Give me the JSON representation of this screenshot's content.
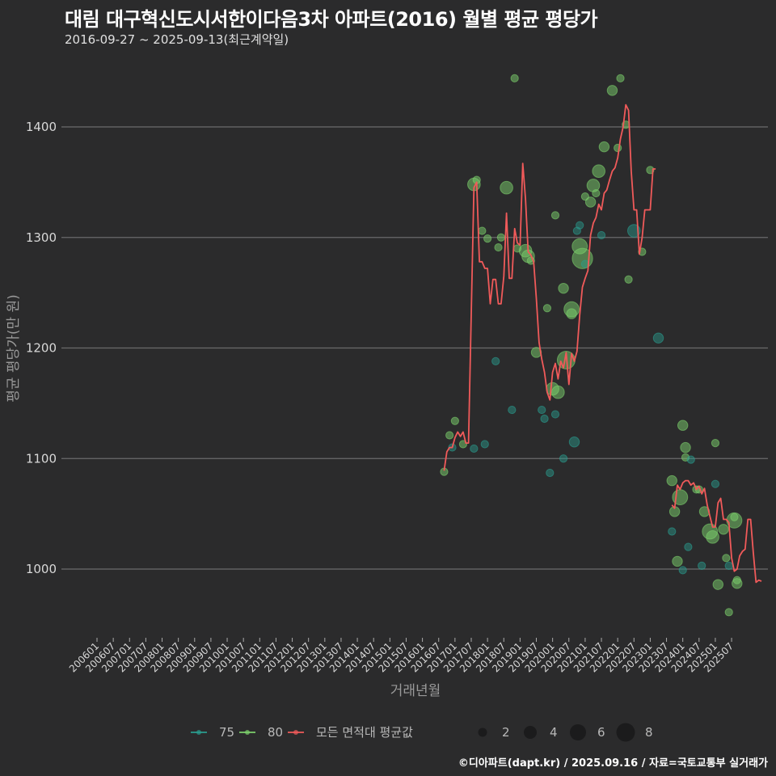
{
  "header": {
    "title": "대림 대구혁신도시서한이다음3차 아파트(2016) 월별 평균 평당가",
    "subtitle": "2016-09-27 ~ 2025-09-13(최근계약일)"
  },
  "footer": {
    "credit": "©디아파트(dapt.kr) / 2025.09.16 / 자료=국토교통부 실거래가"
  },
  "colors": {
    "background": "#2b2b2c",
    "grid": "#6b6b6b",
    "area_75": "#2a9d8f",
    "area_80": "#7ccf6b",
    "average_line": "#f05a5a"
  },
  "legend": {
    "series": [
      {
        "label": "75",
        "color": "#2a9d8f"
      },
      {
        "label": "80",
        "color": "#7ccf6b"
      },
      {
        "label": "모든 면적대 평균값",
        "color": "#f05a5a"
      }
    ],
    "sizes": [
      {
        "label": "2",
        "value": 2
      },
      {
        "label": "4",
        "value": 4
      },
      {
        "label": "6",
        "value": 6
      },
      {
        "label": "8",
        "value": 8
      }
    ]
  },
  "chart_data": {
    "type": "scatter+line",
    "title": "대림 대구혁신도시서한이다음3차 아파트(2016) 월별 평균 평당가",
    "subtitle": "2016-09-27 ~ 2025-09-13(최근계약일)",
    "xlabel": "거래년월",
    "ylabel": "평균 평당가(만 원)",
    "ylim": [
      940,
      1450
    ],
    "yticks": [
      1000,
      1100,
      1200,
      1300,
      1400
    ],
    "xticks": [
      "200601",
      "200607",
      "200701",
      "200707",
      "200801",
      "200807",
      "200901",
      "200907",
      "201001",
      "201007",
      "201101",
      "201107",
      "201201",
      "201207",
      "201301",
      "201307",
      "201401",
      "201407",
      "201501",
      "201507",
      "201601",
      "201607",
      "201701",
      "201707",
      "201801",
      "201807",
      "201901",
      "201907",
      "202001",
      "202007",
      "202101",
      "202107",
      "202201",
      "202207",
      "202301",
      "202307",
      "202401",
      "202407",
      "202501",
      "202507"
    ],
    "grid": true,
    "legend_position": "bottom",
    "average_line": {
      "name": "모든 면적대 평균값",
      "points": [
        [
          "201609",
          1089
        ],
        [
          "201610",
          1106
        ],
        [
          "201611",
          1110
        ],
        [
          "201612",
          1110
        ],
        [
          "201701",
          1119
        ],
        [
          "201702",
          1124
        ],
        [
          "201703",
          1120
        ],
        [
          "201704",
          1124
        ],
        [
          "201705",
          1114
        ],
        [
          "201706",
          1114
        ],
        [
          "201708",
          1345
        ],
        [
          "201709",
          1350
        ],
        [
          "201710",
          1278
        ],
        [
          "201711",
          1278
        ],
        [
          "201712",
          1272
        ],
        [
          "201801",
          1272
        ],
        [
          "201802",
          1240
        ],
        [
          "201803",
          1262
        ],
        [
          "201804",
          1262
        ],
        [
          "201805",
          1240
        ],
        [
          "201806",
          1240
        ],
        [
          "201807",
          1265
        ],
        [
          "201808",
          1322
        ],
        [
          "201809",
          1263
        ],
        [
          "201810",
          1263
        ],
        [
          "201811",
          1308
        ],
        [
          "201812",
          1295
        ],
        [
          "201901",
          1293
        ],
        [
          "201902",
          1367
        ],
        [
          "201903",
          1335
        ],
        [
          "201904",
          1287
        ],
        [
          "201905",
          1284
        ],
        [
          "201906",
          1278
        ],
        [
          "201907",
          1245
        ],
        [
          "201908",
          1205
        ],
        [
          "201909",
          1190
        ],
        [
          "201910",
          1178
        ],
        [
          "201911",
          1160
        ],
        [
          "201912",
          1153
        ],
        [
          "202001",
          1178
        ],
        [
          "202002",
          1186
        ],
        [
          "202003",
          1172
        ],
        [
          "202004",
          1188
        ],
        [
          "202005",
          1182
        ],
        [
          "202006",
          1196
        ],
        [
          "202007",
          1167
        ],
        [
          "202008",
          1195
        ],
        [
          "202009",
          1188
        ],
        [
          "202010",
          1197
        ],
        [
          "202011",
          1230
        ],
        [
          "202012",
          1255
        ],
        [
          "202101",
          1263
        ],
        [
          "202102",
          1270
        ],
        [
          "202103",
          1302
        ],
        [
          "202104",
          1313
        ],
        [
          "202105",
          1318
        ],
        [
          "202106",
          1330
        ],
        [
          "202107",
          1325
        ],
        [
          "202108",
          1340
        ],
        [
          "202109",
          1343
        ],
        [
          "202110",
          1352
        ],
        [
          "202111",
          1360
        ],
        [
          "202112",
          1363
        ],
        [
          "202201",
          1372
        ],
        [
          "202202",
          1389
        ],
        [
          "202203",
          1400
        ],
        [
          "202204",
          1420
        ],
        [
          "202205",
          1415
        ],
        [
          "202206",
          1360
        ],
        [
          "202207",
          1325
        ],
        [
          "202208",
          1325
        ],
        [
          "202209",
          1285
        ],
        [
          "202210",
          1300
        ],
        [
          "202211",
          1325
        ],
        [
          "202212",
          1325
        ],
        [
          "202301",
          1325
        ],
        [
          "202302",
          1362
        ],
        [
          "202303",
          1362
        ],
        [
          "202309",
          1058
        ],
        [
          "202310",
          1055
        ],
        [
          "202311",
          1076
        ],
        [
          "202312",
          1072
        ],
        [
          "202401",
          1078
        ],
        [
          "202402",
          1080
        ],
        [
          "202403",
          1080
        ],
        [
          "202404",
          1076
        ],
        [
          "202405",
          1078
        ],
        [
          "202406",
          1072
        ],
        [
          "202407",
          1075
        ],
        [
          "202408",
          1068
        ],
        [
          "202409",
          1073
        ],
        [
          "202410",
          1058
        ],
        [
          "202411",
          1048
        ],
        [
          "202412",
          1038
        ],
        [
          "202501",
          1038
        ],
        [
          "202502",
          1060
        ],
        [
          "202503",
          1064
        ],
        [
          "202504",
          1045
        ],
        [
          "202505",
          1045
        ],
        [
          "202506",
          1042
        ],
        [
          "202507",
          1010
        ],
        [
          "202508",
          998
        ],
        [
          "202509",
          1000
        ],
        [
          "202510",
          1012
        ],
        [
          "202511",
          1016
        ],
        [
          "202512",
          1018
        ],
        [
          "202601",
          1045
        ],
        [
          "202602",
          1045
        ],
        [
          "202603",
          1015
        ],
        [
          "202604",
          988
        ],
        [
          "202605",
          990
        ],
        [
          "202606",
          989
        ]
      ]
    },
    "points": [
      {
        "area": "80",
        "month": "201609",
        "value": 1088,
        "size": 1
      },
      {
        "area": "80",
        "month": "201611",
        "value": 1121,
        "size": 1
      },
      {
        "area": "75",
        "month": "201612",
        "value": 1110,
        "size": 1
      },
      {
        "area": "80",
        "month": "201701",
        "value": 1134,
        "size": 1
      },
      {
        "area": "80",
        "month": "201704",
        "value": 1113,
        "size": 1
      },
      {
        "area": "75",
        "month": "201708",
        "value": 1109,
        "size": 1
      },
      {
        "area": "80",
        "month": "201708",
        "value": 1348,
        "size": 3
      },
      {
        "area": "80",
        "month": "201709",
        "value": 1352,
        "size": 1
      },
      {
        "area": "80",
        "month": "201711",
        "value": 1306,
        "size": 1
      },
      {
        "area": "75",
        "month": "201712",
        "value": 1113,
        "size": 1
      },
      {
        "area": "80",
        "month": "201801",
        "value": 1299,
        "size": 1
      },
      {
        "area": "75",
        "month": "201804",
        "value": 1188,
        "size": 1
      },
      {
        "area": "80",
        "month": "201805",
        "value": 1291,
        "size": 1
      },
      {
        "area": "80",
        "month": "201806",
        "value": 1300,
        "size": 1
      },
      {
        "area": "80",
        "month": "201808",
        "value": 1345,
        "size": 3
      },
      {
        "area": "75",
        "month": "201810",
        "value": 1144,
        "size": 1
      },
      {
        "area": "80",
        "month": "201811",
        "value": 1444,
        "size": 1
      },
      {
        "area": "80",
        "month": "201812",
        "value": 1290,
        "size": 1
      },
      {
        "area": "80",
        "month": "201903",
        "value": 1288,
        "size": 3
      },
      {
        "area": "80",
        "month": "201904",
        "value": 1283,
        "size": 3
      },
      {
        "area": "80",
        "month": "201905",
        "value": 1279,
        "size": 1
      },
      {
        "area": "80",
        "month": "201907",
        "value": 1196,
        "size": 2
      },
      {
        "area": "75",
        "month": "201909",
        "value": 1144,
        "size": 1
      },
      {
        "area": "75",
        "month": "201910",
        "value": 1136,
        "size": 1
      },
      {
        "area": "80",
        "month": "201911",
        "value": 1236,
        "size": 1
      },
      {
        "area": "75",
        "month": "201912",
        "value": 1087,
        "size": 1
      },
      {
        "area": "80",
        "month": "202001",
        "value": 1163,
        "size": 3
      },
      {
        "area": "75",
        "month": "202002",
        "value": 1140,
        "size": 1
      },
      {
        "area": "80",
        "month": "202002",
        "value": 1320,
        "size": 1
      },
      {
        "area": "80",
        "month": "202003",
        "value": 1160,
        "size": 3
      },
      {
        "area": "75",
        "month": "202005",
        "value": 1100,
        "size": 1
      },
      {
        "area": "80",
        "month": "202005",
        "value": 1254,
        "size": 2
      },
      {
        "area": "80",
        "month": "202006",
        "value": 1189,
        "size": 5
      },
      {
        "area": "80",
        "month": "202008",
        "value": 1235,
        "size": 4
      },
      {
        "area": "80",
        "month": "202008",
        "value": 1231,
        "size": 2
      },
      {
        "area": "75",
        "month": "202009",
        "value": 1115,
        "size": 2
      },
      {
        "area": "75",
        "month": "202010",
        "value": 1306,
        "size": 1
      },
      {
        "area": "75",
        "month": "202011",
        "value": 1311,
        "size": 1
      },
      {
        "area": "80",
        "month": "202011",
        "value": 1292,
        "size": 4
      },
      {
        "area": "80",
        "month": "202012",
        "value": 1281,
        "size": 6
      },
      {
        "area": "75",
        "month": "202101",
        "value": 1276,
        "size": 1
      },
      {
        "area": "80",
        "month": "202101",
        "value": 1337,
        "size": 1
      },
      {
        "area": "80",
        "month": "202103",
        "value": 1332,
        "size": 2
      },
      {
        "area": "80",
        "month": "202104",
        "value": 1347,
        "size": 3
      },
      {
        "area": "80",
        "month": "202105",
        "value": 1340,
        "size": 1
      },
      {
        "area": "80",
        "month": "202106",
        "value": 1360,
        "size": 3
      },
      {
        "area": "75",
        "month": "202107",
        "value": 1302,
        "size": 1
      },
      {
        "area": "80",
        "month": "202108",
        "value": 1382,
        "size": 2
      },
      {
        "area": "80",
        "month": "202111",
        "value": 1433,
        "size": 2
      },
      {
        "area": "80",
        "month": "202201",
        "value": 1381,
        "size": 1
      },
      {
        "area": "80",
        "month": "202202",
        "value": 1444,
        "size": 1
      },
      {
        "area": "80",
        "month": "202204",
        "value": 1402,
        "size": 1
      },
      {
        "area": "80",
        "month": "202205",
        "value": 1262,
        "size": 1
      },
      {
        "area": "75",
        "month": "202207",
        "value": 1306,
        "size": 3
      },
      {
        "area": "80",
        "month": "202210",
        "value": 1287,
        "size": 1
      },
      {
        "area": "80",
        "month": "202301",
        "value": 1361,
        "size": 1
      },
      {
        "area": "75",
        "month": "202304",
        "value": 1209,
        "size": 2
      },
      {
        "area": "80",
        "month": "202309",
        "value": 1080,
        "size": 2
      },
      {
        "area": "75",
        "month": "202309",
        "value": 1034,
        "size": 1
      },
      {
        "area": "80",
        "month": "202310",
        "value": 1052,
        "size": 2
      },
      {
        "area": "80",
        "month": "202311",
        "value": 1007,
        "size": 2
      },
      {
        "area": "80",
        "month": "202312",
        "value": 1065,
        "size": 4
      },
      {
        "area": "80",
        "month": "202401",
        "value": 1130,
        "size": 2
      },
      {
        "area": "75",
        "month": "202401",
        "value": 999,
        "size": 1
      },
      {
        "area": "80",
        "month": "202402",
        "value": 1110,
        "size": 2
      },
      {
        "area": "80",
        "month": "202402",
        "value": 1101,
        "size": 1
      },
      {
        "area": "75",
        "month": "202403",
        "value": 1020,
        "size": 1
      },
      {
        "area": "75",
        "month": "202404",
        "value": 1099,
        "size": 1
      },
      {
        "area": "80",
        "month": "202406",
        "value": 1072,
        "size": 1
      },
      {
        "area": "80",
        "month": "202407",
        "value": 1072,
        "size": 1
      },
      {
        "area": "75",
        "month": "202408",
        "value": 1003,
        "size": 1
      },
      {
        "area": "80",
        "month": "202409",
        "value": 1052,
        "size": 2
      },
      {
        "area": "80",
        "month": "202411",
        "value": 1034,
        "size": 4
      },
      {
        "area": "80",
        "month": "202412",
        "value": 1029,
        "size": 3
      },
      {
        "area": "75",
        "month": "202501",
        "value": 1077,
        "size": 1
      },
      {
        "area": "80",
        "month": "202501",
        "value": 1114,
        "size": 1
      },
      {
        "area": "80",
        "month": "202502",
        "value": 986,
        "size": 2
      },
      {
        "area": "80",
        "month": "202504",
        "value": 1036,
        "size": 2
      },
      {
        "area": "80",
        "month": "202505",
        "value": 1010,
        "size": 1
      },
      {
        "area": "75",
        "month": "202506",
        "value": 1003,
        "size": 1
      },
      {
        "area": "80",
        "month": "202506",
        "value": 961,
        "size": 1
      },
      {
        "area": "80",
        "month": "202508",
        "value": 1044,
        "size": 4
      },
      {
        "area": "80",
        "month": "202508",
        "value": 1047,
        "size": 1
      },
      {
        "area": "80",
        "month": "202509",
        "value": 987,
        "size": 2
      },
      {
        "area": "80",
        "month": "202509",
        "value": 990,
        "size": 1
      }
    ]
  }
}
